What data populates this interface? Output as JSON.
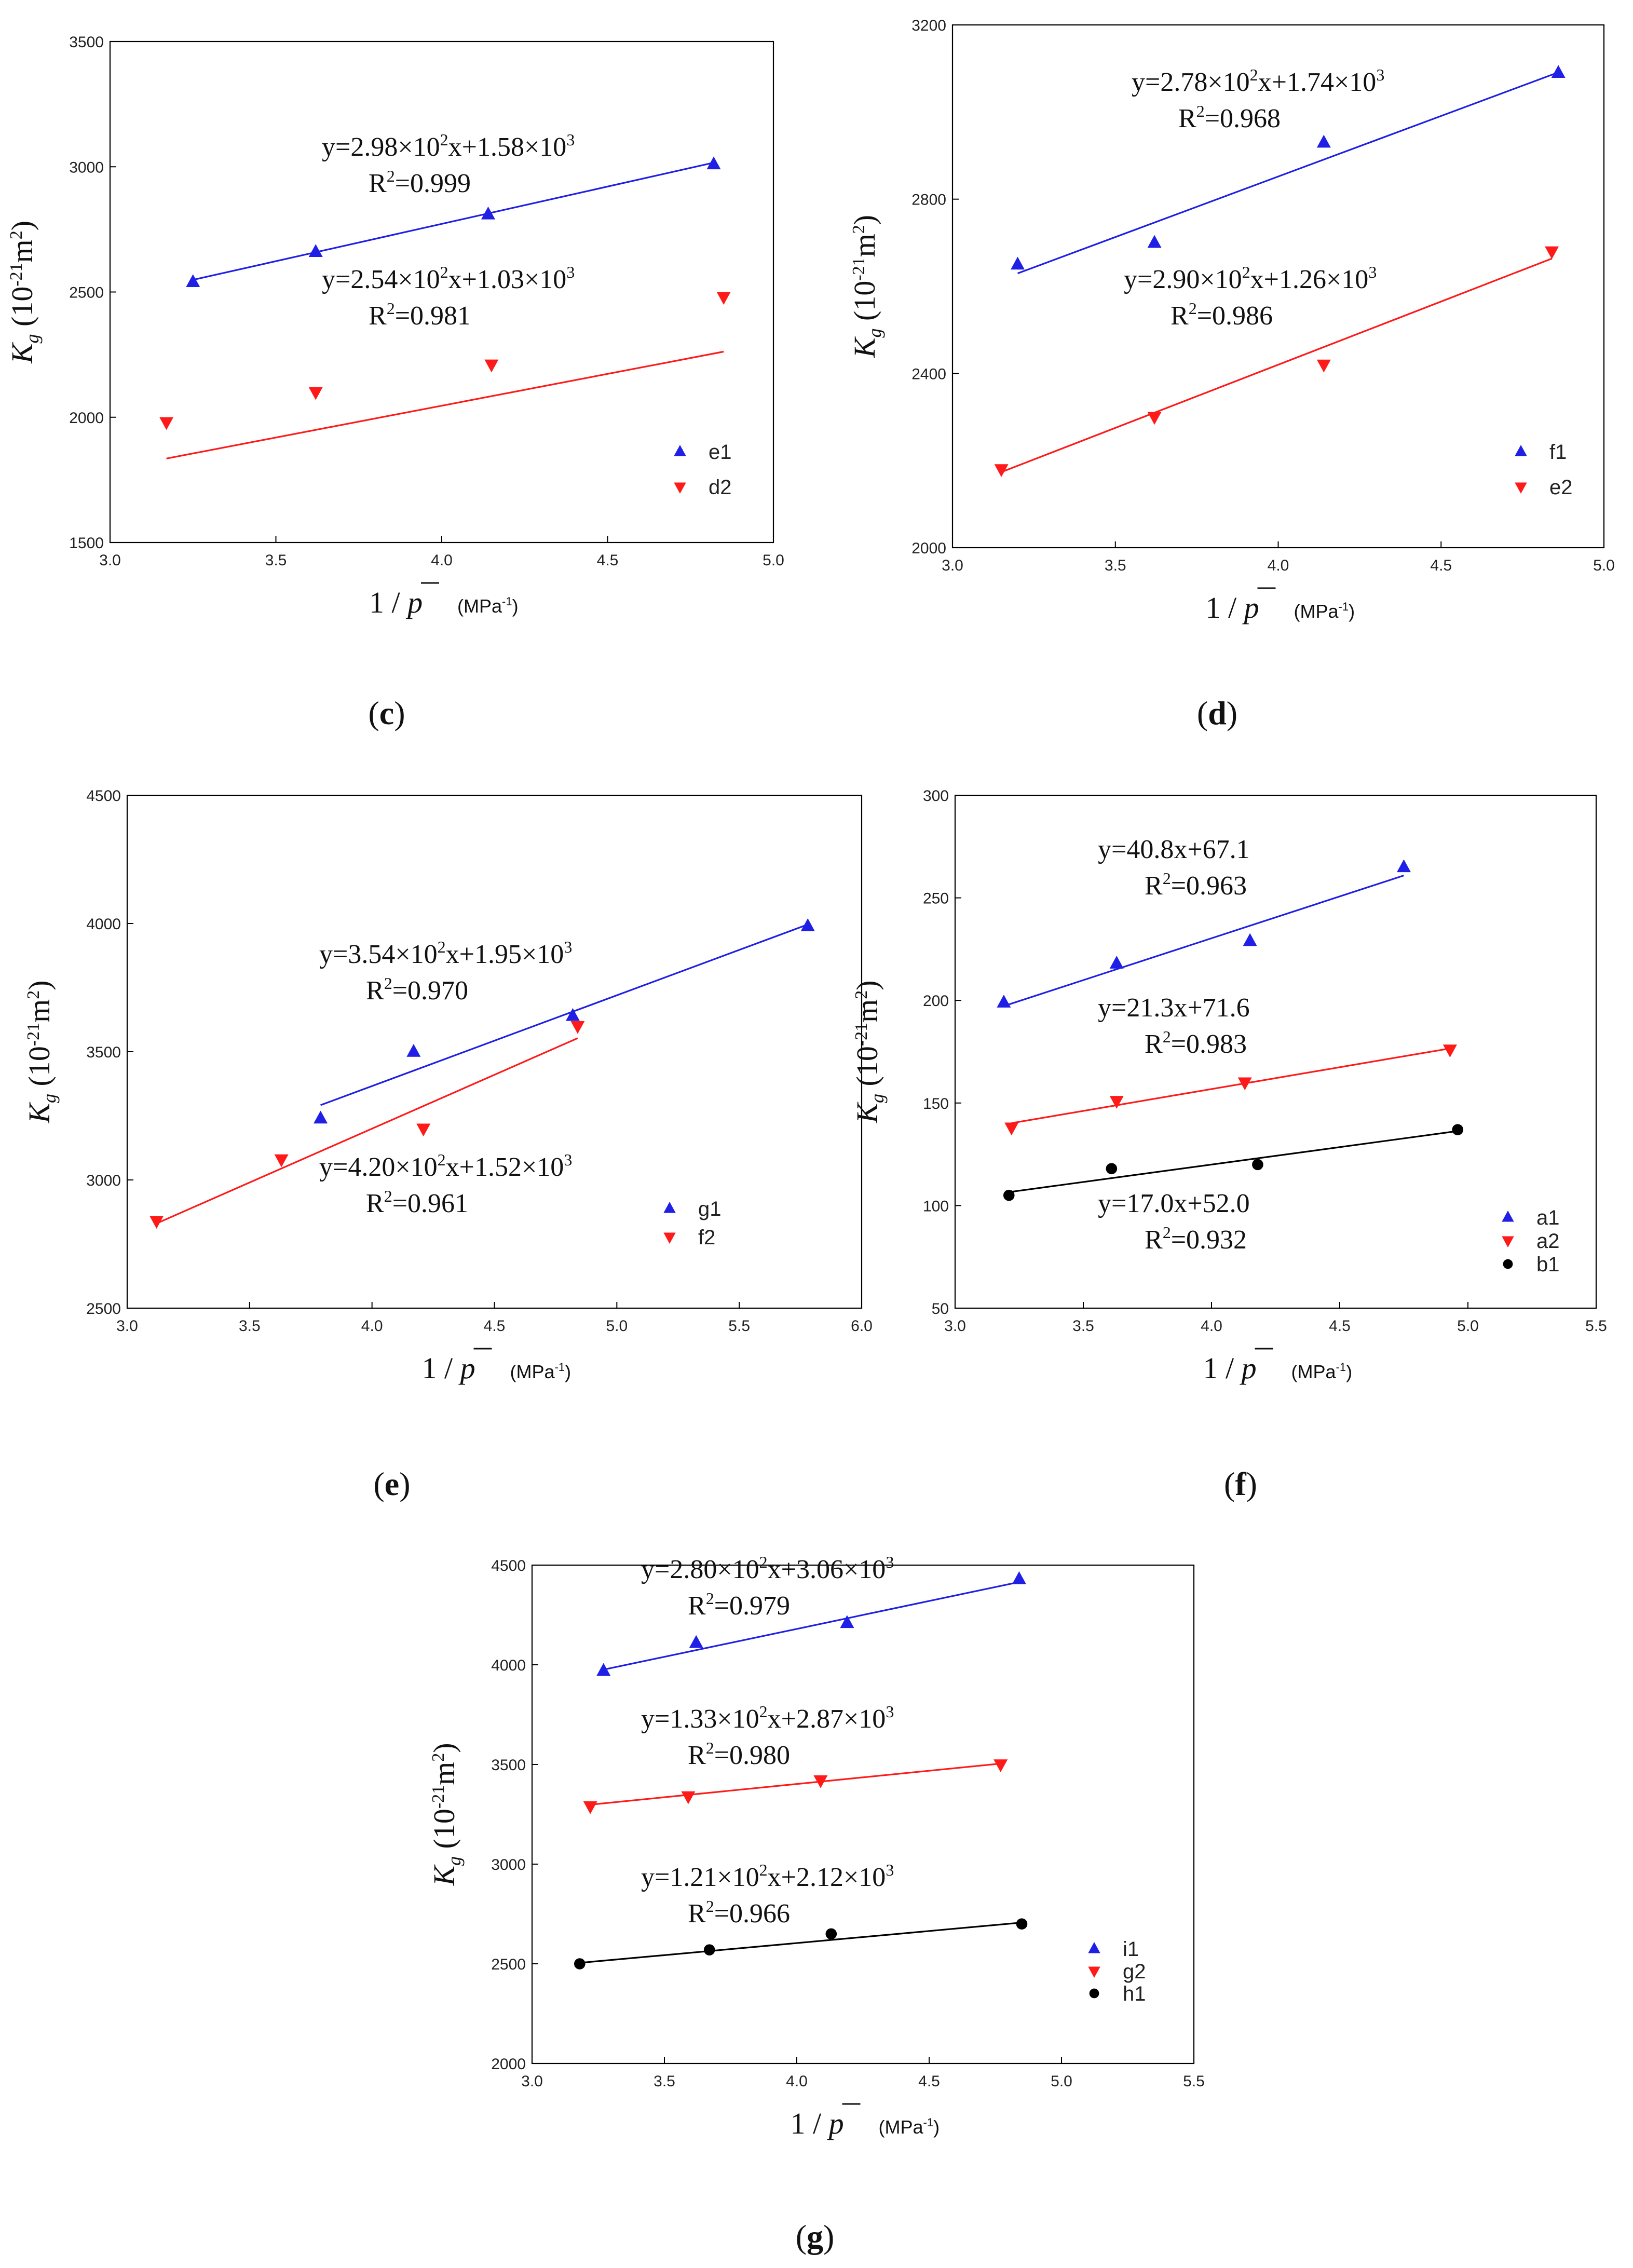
{
  "chart_data": [
    {
      "id": "c",
      "type": "scatter",
      "panel_label": "c",
      "xlabel": "1 / p",
      "xunit": "(MPa",
      "xunit_exp": "-1",
      "ylabel_main": "K",
      "ylabel_sub": "g",
      "ylabel_unit_pre": "(10",
      "ylabel_unit_exp": "-21",
      "ylabel_unit_mid": "m",
      "ylabel_unit_exp2": "2",
      "ylabel_unit_post": ")",
      "xlim": [
        3.0,
        5.0
      ],
      "ylim": [
        1500,
        3500
      ],
      "xticks": [
        "3.0",
        "3.5",
        "4.0",
        "4.5",
        "5.0"
      ],
      "yticks": [
        "1500",
        "2000",
        "2500",
        "3000",
        "3500"
      ],
      "series": [
        {
          "name": "e1",
          "color": "#1f1fe6",
          "marker": "triangle-up",
          "x": [
            3.25,
            3.62,
            4.14,
            4.82
          ],
          "y": [
            2540,
            2660,
            2810,
            3010
          ],
          "fit": {
            "slope": 298,
            "intercept": 1580,
            "x0": 3.25,
            "x1": 4.82
          },
          "eq_pre": "y=2.98×10",
          "eq_exp": "2",
          "eq_mid": "x+1.58×10",
          "eq_exp2": "3",
          "r2_pre": "R",
          "r2_exp": "2",
          "r2_post": "=0.999"
        },
        {
          "name": "d2",
          "color": "#ff1a1a",
          "marker": "triangle-down",
          "x": [
            3.17,
            3.62,
            4.15,
            4.85
          ],
          "y": [
            1980,
            2100,
            2210,
            2480
          ],
          "fit": {
            "slope": 254,
            "intercept": 1030,
            "x0": 3.17,
            "x1": 4.85
          },
          "eq_pre": "y=2.54×10",
          "eq_exp": "2",
          "eq_mid": "x+1.03×10",
          "eq_exp2": "3",
          "r2_pre": "R",
          "r2_exp": "2",
          "r2_post": "=0.981"
        }
      ]
    },
    {
      "id": "d",
      "type": "scatter",
      "panel_label": "d",
      "xlabel": "1 / p",
      "xunit": "(MPa",
      "xunit_exp": "-1",
      "ylabel_main": "K",
      "ylabel_sub": "g",
      "ylabel_unit_pre": "(10",
      "ylabel_unit_exp": "-21",
      "ylabel_unit_mid": "m",
      "ylabel_unit_exp2": "2",
      "ylabel_unit_post": ")",
      "xlim": [
        3.0,
        5.0
      ],
      "ylim": [
        2000,
        3200
      ],
      "xticks": [
        "3.0",
        "3.5",
        "4.0",
        "4.5",
        "5.0"
      ],
      "yticks": [
        "2000",
        "2400",
        "2800",
        "3200"
      ],
      "series": [
        {
          "name": "f1",
          "color": "#1f1fe6",
          "marker": "triangle-up",
          "x": [
            3.2,
            3.62,
            4.14,
            4.86
          ],
          "y": [
            2650,
            2700,
            2930,
            3090
          ],
          "fit": {
            "slope": 278,
            "intercept": 1740,
            "x0": 3.2,
            "x1": 4.86
          },
          "eq_pre": "y=2.78×10",
          "eq_exp": "2",
          "eq_mid": "x+1.74×10",
          "eq_exp2": "3",
          "r2_pre": "R",
          "r2_exp": "2",
          "r2_post": "=0.968"
        },
        {
          "name": "e2",
          "color": "#ff1a1a",
          "marker": "triangle-down",
          "x": [
            3.15,
            3.62,
            4.14,
            4.84
          ],
          "y": [
            2180,
            2300,
            2420,
            2680
          ],
          "fit": {
            "slope": 290,
            "intercept": 1260,
            "x0": 3.15,
            "x1": 4.84
          },
          "eq_pre": "y=2.90×10",
          "eq_exp": "2",
          "eq_mid": "x+1.26×10",
          "eq_exp2": "3",
          "r2_pre": "R",
          "r2_exp": "2",
          "r2_post": "=0.986"
        }
      ]
    },
    {
      "id": "e",
      "type": "scatter",
      "panel_label": "e",
      "xlabel": "1 / p",
      "xunit": "(MPa",
      "xunit_exp": "-1",
      "ylabel_main": "K",
      "ylabel_sub": "g",
      "ylabel_unit_pre": "(10",
      "ylabel_unit_exp": "-21",
      "ylabel_unit_mid": "m",
      "ylabel_unit_exp2": "2",
      "ylabel_unit_post": ")",
      "xlim": [
        3.0,
        6.0
      ],
      "ylim": [
        2500,
        4500
      ],
      "xticks": [
        "3.0",
        "3.5",
        "4.0",
        "4.5",
        "5.0",
        "5.5",
        "6.0"
      ],
      "yticks": [
        "2500",
        "3000",
        "3500",
        "4000",
        "4500"
      ],
      "series": [
        {
          "name": "g1",
          "color": "#1f1fe6",
          "marker": "triangle-up",
          "x": [
            3.79,
            4.17,
            4.82,
            5.78
          ],
          "y": [
            3240,
            3500,
            3640,
            3990
          ],
          "fit": {
            "slope": 354,
            "intercept": 1950,
            "x0": 3.79,
            "x1": 5.78
          },
          "eq_pre": "y=3.54×10",
          "eq_exp": "2",
          "eq_mid": "x+1.95×10",
          "eq_exp2": "3",
          "r2_pre": "R",
          "r2_exp": "2",
          "r2_post": "=0.970"
        },
        {
          "name": "f2",
          "color": "#ff1a1a",
          "marker": "triangle-down",
          "x": [
            3.12,
            3.63,
            4.21,
            4.84
          ],
          "y": [
            2840,
            3080,
            3200,
            3600
          ],
          "fit": {
            "slope": 420,
            "intercept": 1520,
            "x0": 3.12,
            "x1": 4.84
          },
          "eq_pre": "y=4.20×10",
          "eq_exp": "2",
          "eq_mid": "x+1.52×10",
          "eq_exp2": "3",
          "r2_pre": "R",
          "r2_exp": "2",
          "r2_post": "=0.961"
        }
      ]
    },
    {
      "id": "f",
      "type": "scatter",
      "panel_label": "f",
      "xlabel": "1 / p",
      "xunit": "(MPa",
      "xunit_exp": "-1",
      "ylabel_main": "K",
      "ylabel_sub": "g",
      "ylabel_unit_pre": "(10",
      "ylabel_unit_exp": "-21",
      "ylabel_unit_mid": "m",
      "ylabel_unit_exp2": "2",
      "ylabel_unit_post": ")",
      "xlim": [
        3.0,
        5.5
      ],
      "ylim": [
        50,
        300
      ],
      "xticks": [
        "3.0",
        "3.5",
        "4.0",
        "4.5",
        "5.0",
        "5.5"
      ],
      "yticks": [
        "50",
        "100",
        "150",
        "200",
        "250",
        "300"
      ],
      "series": [
        {
          "name": "a1",
          "color": "#1f1fe6",
          "marker": "triangle-up",
          "x": [
            3.19,
            3.63,
            4.15,
            4.75
          ],
          "y": [
            199,
            218,
            229,
            265
          ],
          "fit": {
            "slope": 40.8,
            "intercept": 67.1,
            "x0": 3.19,
            "x1": 4.75
          },
          "eq_pre": "y=40.8x+67.1",
          "eq_exp": "",
          "eq_mid": "",
          "eq_exp2": "",
          "r2_pre": "R",
          "r2_exp": "2",
          "r2_post": "=0.963"
        },
        {
          "name": "a2",
          "color": "#ff1a1a",
          "marker": "triangle-down",
          "x": [
            3.22,
            3.63,
            4.13,
            4.93
          ],
          "y": [
            138,
            151,
            160,
            176
          ],
          "fit": {
            "slope": 21.3,
            "intercept": 71.6,
            "x0": 3.22,
            "x1": 4.93
          },
          "eq_pre": "y=21.3x+71.6",
          "eq_exp": "",
          "eq_mid": "",
          "eq_exp2": "",
          "r2_pre": "R",
          "r2_exp": "2",
          "r2_post": "=0.983"
        },
        {
          "name": "b1",
          "color": "#000000",
          "marker": "circle",
          "x": [
            3.21,
            3.61,
            4.18,
            4.96
          ],
          "y": [
            105,
            118,
            120,
            137
          ],
          "fit": {
            "slope": 17.0,
            "intercept": 52.0,
            "x0": 3.21,
            "x1": 4.96
          },
          "eq_pre": "y=17.0x+52.0",
          "eq_exp": "",
          "eq_mid": "",
          "eq_exp2": "",
          "r2_pre": "R",
          "r2_exp": "2",
          "r2_post": "=0.932"
        }
      ]
    },
    {
      "id": "g",
      "type": "scatter",
      "panel_label": "g",
      "xlabel": "1 / p",
      "xunit": "(MPa",
      "xunit_exp": "-1",
      "ylabel_main": "K",
      "ylabel_sub": "g",
      "ylabel_unit_pre": "(10",
      "ylabel_unit_exp": "-21",
      "ylabel_unit_mid": "m",
      "ylabel_unit_exp2": "2",
      "ylabel_unit_post": ")",
      "xlim": [
        3.0,
        5.5
      ],
      "ylim": [
        2000,
        4500
      ],
      "xticks": [
        "3.0",
        "3.5",
        "4.0",
        "4.5",
        "5.0",
        "5.5"
      ],
      "yticks": [
        "2000",
        "2500",
        "3000",
        "3500",
        "4000",
        "4500"
      ],
      "series": [
        {
          "name": "i1",
          "color": "#1f1fe6",
          "marker": "triangle-up",
          "x": [
            3.27,
            3.62,
            4.19,
            4.84
          ],
          "y": [
            3970,
            4110,
            4210,
            4430
          ],
          "fit": {
            "slope": 280,
            "intercept": 3060,
            "x0": 3.27,
            "x1": 4.84
          },
          "eq_pre": "y=2.80×10",
          "eq_exp": "2",
          "eq_mid": "x+3.06×10",
          "eq_exp2": "3",
          "r2_pre": "R",
          "r2_exp": "2",
          "r2_post": "=0.979"
        },
        {
          "name": "g2",
          "color": "#ff1a1a",
          "marker": "triangle-down",
          "x": [
            3.22,
            3.59,
            4.09,
            4.77
          ],
          "y": [
            3290,
            3340,
            3420,
            3500
          ],
          "fit": {
            "slope": 133,
            "intercept": 2870,
            "x0": 3.22,
            "x1": 4.77
          },
          "eq_pre": "y=1.33×10",
          "eq_exp": "2",
          "eq_mid": "x+2.87×10",
          "eq_exp2": "3",
          "r2_pre": "R",
          "r2_exp": "2",
          "r2_post": "=0.980"
        },
        {
          "name": "h1",
          "color": "#000000",
          "marker": "circle",
          "x": [
            3.18,
            3.67,
            4.13,
            4.85
          ],
          "y": [
            2500,
            2570,
            2650,
            2700
          ],
          "fit": {
            "slope": 121,
            "intercept": 2120,
            "x0": 3.18,
            "x1": 4.85
          },
          "eq_pre": "y=1.21×10",
          "eq_exp": "2",
          "eq_mid": "x+2.12×10",
          "eq_exp2": "3",
          "r2_pre": "R",
          "r2_exp": "2",
          "r2_post": "=0.966"
        }
      ]
    }
  ]
}
